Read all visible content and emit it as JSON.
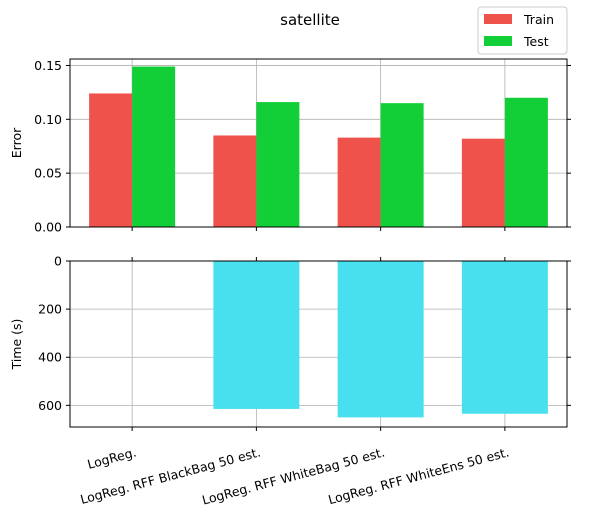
{
  "chart_data": [
    {
      "type": "bar",
      "title": "satellite",
      "ylabel": "Error",
      "xlabel": "",
      "categories": [
        "LogReg.",
        "LogReg. RFF BlackBag 50 est.",
        "LogReg. RFF WhiteBag 50 est.",
        "LogReg. RFF WhiteEns 50 est."
      ],
      "series": [
        {
          "name": "Train",
          "color": "#ef524a",
          "values": [
            0.124,
            0.085,
            0.083,
            0.082
          ]
        },
        {
          "name": "Test",
          "color": "#12cf38",
          "values": [
            0.149,
            0.116,
            0.115,
            0.12
          ]
        }
      ],
      "ylim": [
        0,
        0.156
      ],
      "yticks": [
        0.0,
        0.05,
        0.1,
        0.15
      ],
      "ytick_labels": [
        "0.00",
        "0.05",
        "0.10",
        "0.15"
      ],
      "grid": true,
      "legend": "top-right"
    },
    {
      "type": "bar",
      "ylabel": "Time (s)",
      "xlabel": "",
      "categories": [
        "LogReg.",
        "LogReg. RFF BlackBag 50 est.",
        "LogReg. RFF WhiteBag 50 est.",
        "LogReg. RFF WhiteEns 50 est."
      ],
      "series": [
        {
          "color": "#48e0ee",
          "values": [
            0,
            615,
            650,
            635
          ]
        }
      ],
      "ylim": [
        0,
        690
      ],
      "y_inverted": true,
      "yticks": [
        0,
        200,
        400,
        600
      ],
      "ytick_labels": [
        "0",
        "200",
        "400",
        "600"
      ],
      "grid": true
    }
  ]
}
